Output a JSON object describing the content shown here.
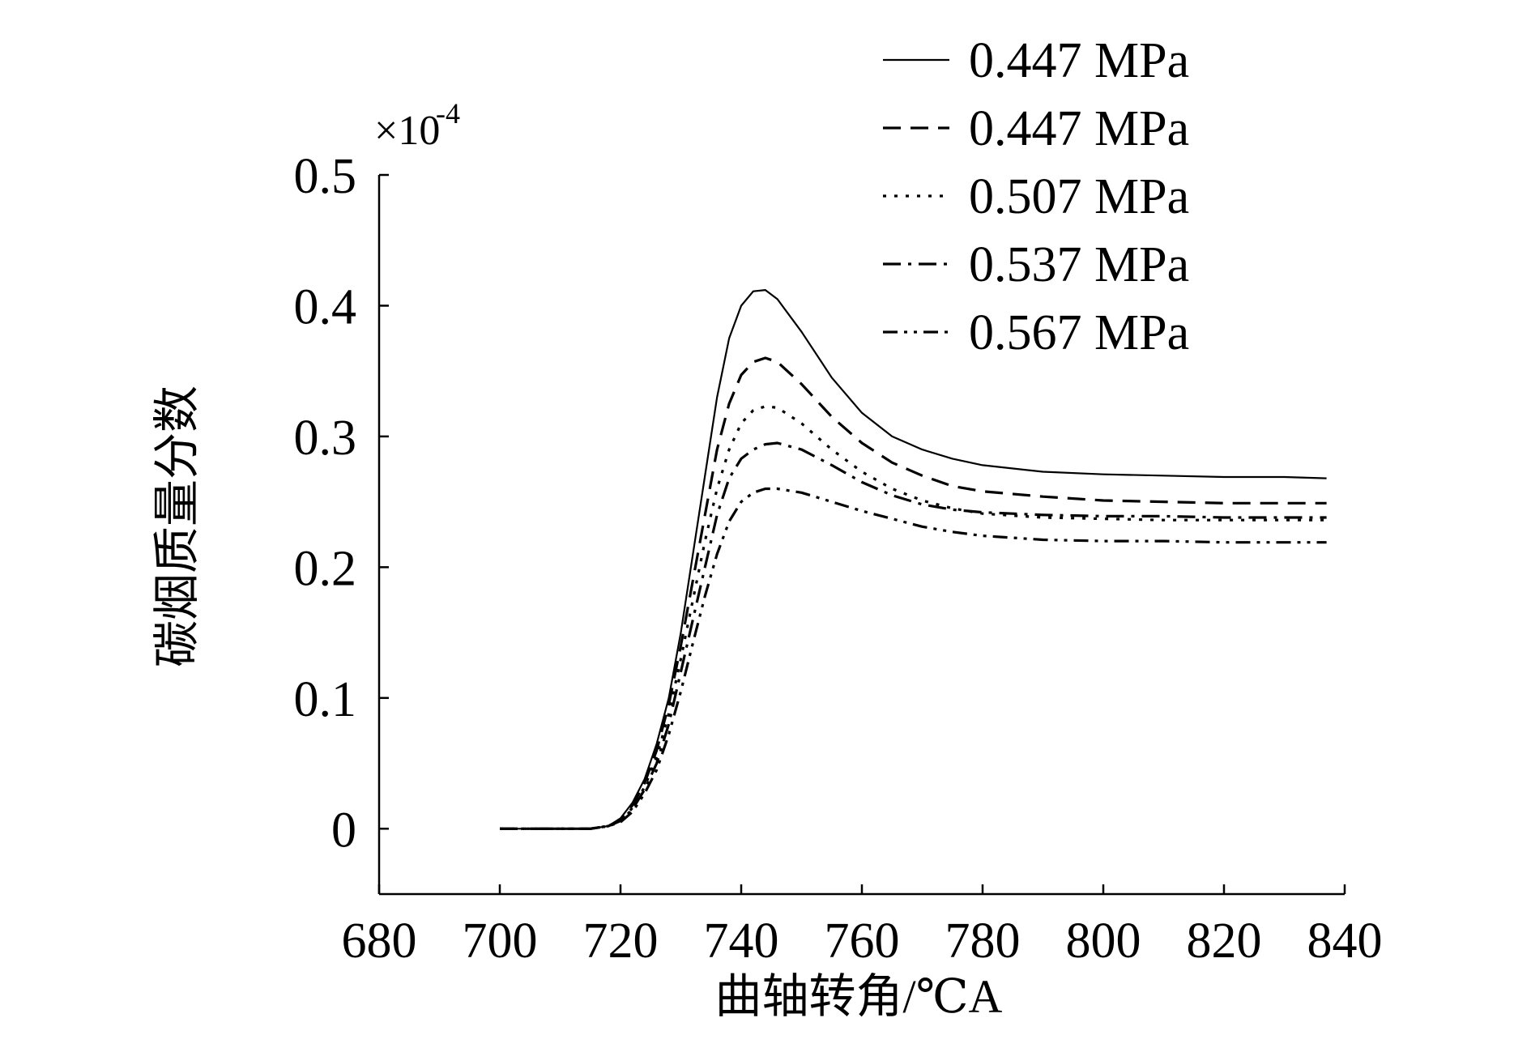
{
  "chart_data": {
    "type": "line",
    "title": "",
    "xlabel": "曲轴转角/℃A",
    "ylabel": "碳烟质量分数",
    "y_scale_prefix": "×10",
    "y_scale_exponent": "-4",
    "xlim": [
      680,
      840
    ],
    "ylim": [
      -0.05,
      0.5
    ],
    "xticks": [
      680,
      700,
      720,
      740,
      760,
      780,
      800,
      820,
      840
    ],
    "yticks": [
      0,
      0.1,
      0.2,
      0.3,
      0.4,
      0.5
    ],
    "xtick_labels": [
      "680",
      "700",
      "720",
      "740",
      "760",
      "780",
      "800",
      "820",
      "840"
    ],
    "ytick_labels": [
      "0",
      "0.1",
      "0.2",
      "0.3",
      "0.4",
      "0.5"
    ],
    "grid": false,
    "legend_position": "top-right",
    "series": [
      {
        "name": "0.447 MPa",
        "style": "solid",
        "x": [
          700,
          715,
          718,
          720,
          722,
          724,
          726,
          728,
          730,
          732,
          734,
          736,
          738,
          740,
          742,
          744,
          746,
          750,
          755,
          760,
          765,
          770,
          775,
          780,
          790,
          800,
          810,
          820,
          830,
          837
        ],
        "y": [
          0,
          0,
          0.002,
          0.008,
          0.02,
          0.038,
          0.065,
          0.1,
          0.15,
          0.21,
          0.27,
          0.33,
          0.375,
          0.4,
          0.411,
          0.412,
          0.405,
          0.38,
          0.345,
          0.318,
          0.3,
          0.29,
          0.283,
          0.278,
          0.273,
          0.271,
          0.27,
          0.269,
          0.269,
          0.268
        ]
      },
      {
        "name": "0.447 MPa",
        "style": "dashed",
        "x": [
          700,
          715,
          718,
          720,
          722,
          724,
          726,
          728,
          730,
          732,
          734,
          736,
          738,
          740,
          742,
          744,
          746,
          750,
          755,
          760,
          765,
          770,
          775,
          780,
          790,
          800,
          810,
          820,
          830,
          837
        ],
        "y": [
          0,
          0,
          0.002,
          0.007,
          0.018,
          0.035,
          0.06,
          0.095,
          0.14,
          0.19,
          0.24,
          0.29,
          0.325,
          0.347,
          0.357,
          0.36,
          0.357,
          0.34,
          0.315,
          0.295,
          0.28,
          0.27,
          0.262,
          0.258,
          0.254,
          0.251,
          0.25,
          0.249,
          0.249,
          0.249
        ]
      },
      {
        "name": "0.507 MPa",
        "style": "dotted",
        "x": [
          700,
          715,
          718,
          720,
          722,
          724,
          726,
          728,
          730,
          732,
          734,
          736,
          738,
          740,
          742,
          744,
          746,
          750,
          755,
          760,
          765,
          770,
          775,
          780,
          790,
          800,
          810,
          820,
          830,
          837
        ],
        "y": [
          0,
          0,
          0.002,
          0.006,
          0.016,
          0.032,
          0.055,
          0.088,
          0.13,
          0.175,
          0.22,
          0.26,
          0.29,
          0.31,
          0.32,
          0.323,
          0.322,
          0.31,
          0.29,
          0.273,
          0.26,
          0.251,
          0.245,
          0.241,
          0.238,
          0.237,
          0.236,
          0.236,
          0.236,
          0.236
        ]
      },
      {
        "name": "0.537 MPa",
        "style": "dashdot",
        "x": [
          700,
          715,
          718,
          720,
          722,
          724,
          726,
          728,
          730,
          732,
          734,
          736,
          738,
          740,
          742,
          744,
          746,
          750,
          755,
          760,
          765,
          770,
          775,
          780,
          790,
          800,
          810,
          820,
          830,
          837
        ],
        "y": [
          0,
          0,
          0.002,
          0.006,
          0.015,
          0.03,
          0.05,
          0.08,
          0.12,
          0.16,
          0.2,
          0.24,
          0.268,
          0.283,
          0.29,
          0.294,
          0.295,
          0.29,
          0.278,
          0.265,
          0.255,
          0.248,
          0.244,
          0.242,
          0.24,
          0.239,
          0.239,
          0.238,
          0.238,
          0.238
        ]
      },
      {
        "name": "0.567 MPa",
        "style": "dashdotdot",
        "x": [
          700,
          715,
          718,
          720,
          722,
          724,
          726,
          728,
          730,
          732,
          734,
          736,
          738,
          740,
          742,
          744,
          746,
          750,
          755,
          760,
          765,
          770,
          775,
          780,
          790,
          800,
          810,
          820,
          830,
          837
        ],
        "y": [
          0,
          0,
          0.002,
          0.005,
          0.013,
          0.027,
          0.045,
          0.072,
          0.105,
          0.142,
          0.178,
          0.21,
          0.235,
          0.25,
          0.257,
          0.26,
          0.26,
          0.257,
          0.25,
          0.243,
          0.237,
          0.231,
          0.227,
          0.224,
          0.221,
          0.22,
          0.22,
          0.219,
          0.219,
          0.219
        ]
      }
    ]
  }
}
